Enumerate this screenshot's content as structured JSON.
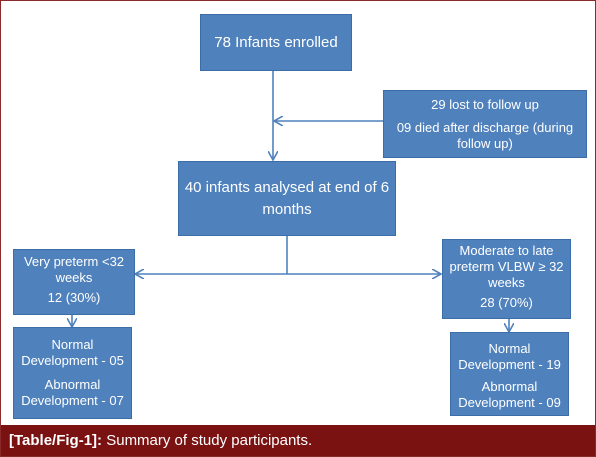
{
  "diagram": {
    "box_enrolled": "78 Infants enrolled",
    "box_lost": {
      "line1": "29 lost to follow up",
      "line2": "09 died after discharge (during",
      "line3": "follow up)"
    },
    "box_analysed": {
      "line1": "40 infants analysed at end of 6",
      "line2": "months"
    },
    "box_very_preterm": {
      "line1": "Very preterm <32",
      "line2": "weeks",
      "line3": "12 (30%)"
    },
    "box_moderate": {
      "line1": "Moderate to late",
      "line2": "preterm VLBW ≥ 32",
      "line3": "weeks",
      "line4": "28 (70%)"
    },
    "box_left_outcome": {
      "line1": "Normal",
      "line2": "Development - 05",
      "line3": "Abnormal",
      "line4": "Development - 07"
    },
    "box_right_outcome": {
      "line1": "Normal",
      "line2": "Development - 19",
      "line3": "Abnormal",
      "line4": "Development - 09"
    }
  },
  "caption": {
    "label": "[Table/Fig-1]:",
    "text": "Summary of study participants."
  },
  "colors": {
    "box_fill": "#4f81bd",
    "box_border": "#3c6da6",
    "connector": "#4f81bd",
    "caption_bg": "#7a1212",
    "caption_text": "#ffffff"
  }
}
